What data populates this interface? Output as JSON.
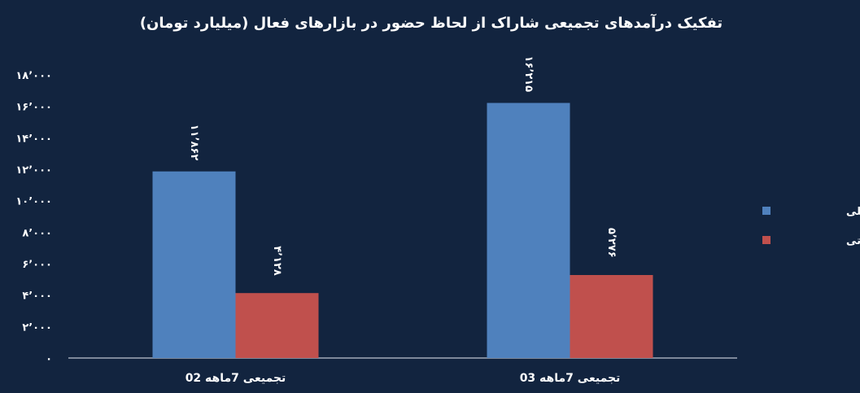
{
  "chart_data": {
    "type": "bar",
    "title": "تفکیک درآمدهای تجمیعی شاراک از لحاظ حضور در بازارهای فعال (میلیارد تومان)",
    "categories": [
      "تجمیعی 7ماهه 02",
      "تجمیعی 7ماهه 03"
    ],
    "series": [
      {
        "name": "بازار داخلی",
        "color": "#4f81bd",
        "values": [
          11862,
          16215
        ],
        "labels": [
          "۱۱٬۸۶۲",
          "۱۶٬۲۱۵"
        ]
      },
      {
        "name": "بازار صادراتی",
        "color": "#c0504d",
        "values": [
          4128,
          5276
        ],
        "labels": [
          "۴٬۱۲۸",
          "۵٬۲۷۶"
        ]
      }
    ],
    "ylim": [
      0,
      18000
    ],
    "yticks": [
      0,
      2000,
      4000,
      6000,
      8000,
      10000,
      12000,
      14000,
      16000,
      18000
    ],
    "ytick_labels": [
      "۰",
      "۲٬۰۰۰",
      "۴٬۰۰۰",
      "۶٬۰۰۰",
      "۸٬۰۰۰",
      "۱۰٬۰۰۰",
      "۱۲٬۰۰۰",
      "۱۴٬۰۰۰",
      "۱۶٬۰۰۰",
      "۱۸٬۰۰۰"
    ],
    "xlabel": "",
    "ylabel": "",
    "grid": false,
    "legend_position": "right",
    "background_color": "#12243f"
  }
}
